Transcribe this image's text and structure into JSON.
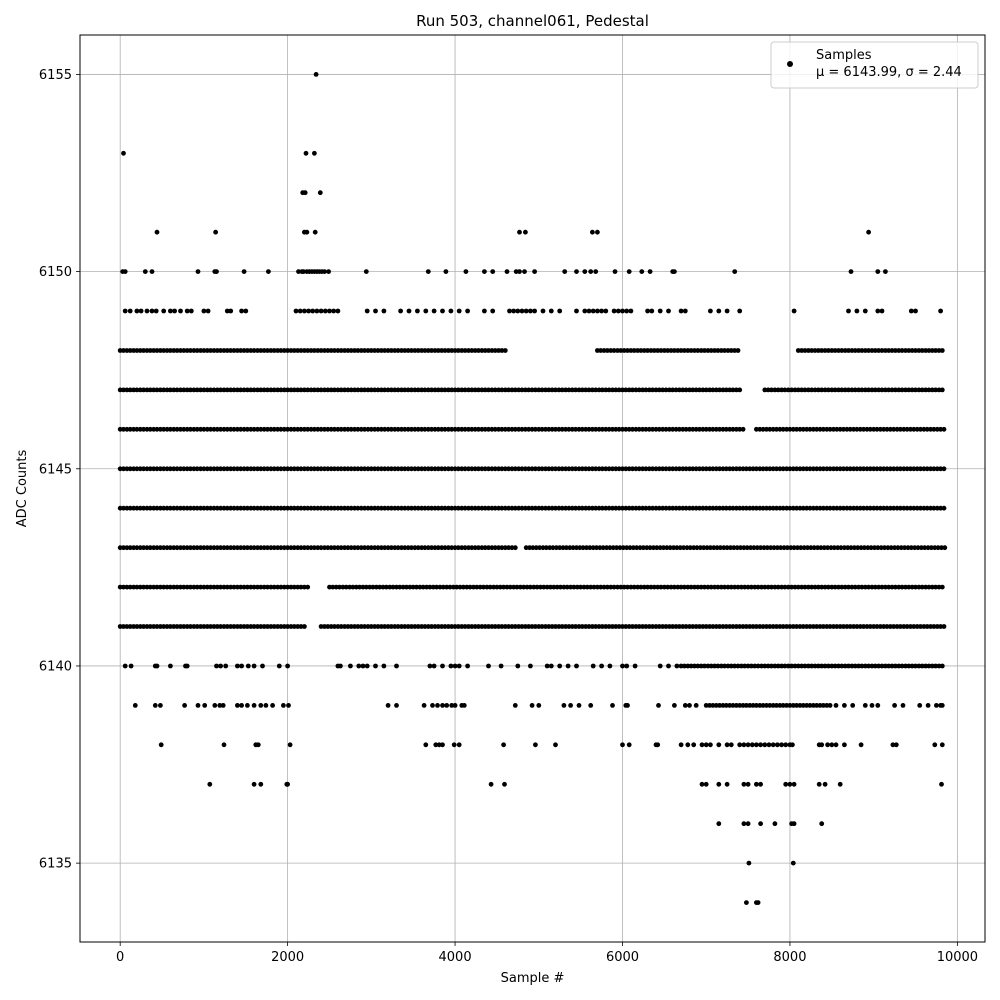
{
  "chart_data": {
    "type": "scatter",
    "title": "Run 503, channel061, Pedestal",
    "xlabel": "Sample #",
    "ylabel": "ADC Counts",
    "xlim": [
      -480,
      10330
    ],
    "ylim": [
      6133,
      6156
    ],
    "xticks": [
      0,
      2000,
      4000,
      6000,
      8000,
      10000
    ],
    "yticks": [
      6135,
      6140,
      6145,
      6150,
      6155
    ],
    "grid": true,
    "marker_color": "#000000",
    "legend": {
      "placement": "top-right",
      "series_name": "Samples",
      "stats_text": "μ = 6143.99, σ = 2.44"
    },
    "sample_count": 9850,
    "level_segments": [
      {
        "y": 6148,
        "segments": [
          [
            0,
            4600
          ],
          [
            5700,
            7400
          ],
          [
            8100,
            9850
          ]
        ]
      },
      {
        "y": 6147,
        "segments": [
          [
            0,
            7400
          ],
          [
            7700,
            9850
          ]
        ]
      },
      {
        "y": 6146,
        "segments": [
          [
            0,
            7450
          ],
          [
            7600,
            9850
          ]
        ]
      },
      {
        "y": 6145,
        "segments": [
          [
            0,
            9850
          ]
        ]
      },
      {
        "y": 6144,
        "segments": [
          [
            0,
            9850
          ]
        ]
      },
      {
        "y": 6143,
        "segments": [
          [
            0,
            4750
          ],
          [
            4850,
            9850
          ]
        ]
      },
      {
        "y": 6142,
        "segments": [
          [
            0,
            2250
          ],
          [
            2500,
            9850
          ]
        ]
      },
      {
        "y": 6141,
        "segments": [
          [
            0,
            2200
          ],
          [
            2400,
            9850
          ]
        ]
      },
      {
        "y": 6140,
        "segments": [
          [
            6700,
            9850
          ]
        ]
      },
      {
        "y": 6139,
        "segments": [
          [
            7000,
            8500
          ]
        ]
      }
    ],
    "sparse_levels": [
      {
        "y": 6149,
        "x": [
          60,
          120,
          200,
          250,
          320,
          380,
          430,
          520,
          600,
          650,
          720,
          800,
          850,
          1000,
          1050,
          1280,
          1320,
          1450,
          1500,
          2100,
          2150,
          2200,
          2250,
          2300,
          2350,
          2400,
          2450,
          2500,
          2550,
          2600,
          2950,
          3050,
          3150,
          3350,
          3450,
          3550,
          3650,
          3750,
          3850,
          3950,
          4050,
          4150,
          4350,
          4450,
          4650,
          4700,
          4750,
          4800,
          4850,
          4900,
          4950,
          5050,
          5150,
          5250,
          5450,
          5550,
          5600,
          5650,
          5700,
          5750,
          5800,
          5900,
          5950,
          6000,
          6050,
          6100,
          6300,
          6350,
          6450,
          6550,
          6700,
          6750,
          7050,
          7150,
          7250,
          7400,
          8050,
          8700,
          8800,
          8900,
          9050,
          9100,
          9450,
          9500,
          9800
        ]
      },
      {
        "y": 6150,
        "x": [
          30,
          60,
          300,
          380,
          930,
          1130,
          1150,
          1480,
          1770,
          2130,
          2170,
          2190,
          2230,
          2260,
          2290,
          2320,
          2350,
          2380,
          2410,
          2440,
          2490,
          2940,
          3680,
          3890,
          4130,
          4350,
          4450,
          4620,
          4730,
          4770,
          4830,
          4950,
          5310,
          5450,
          5550,
          5620,
          5680,
          5910,
          6080,
          6230,
          6330,
          6600,
          6620,
          7340,
          8730,
          9050,
          9140
        ]
      },
      {
        "y": 6151,
        "x": [
          440,
          1140,
          2200,
          2230,
          2330,
          4770,
          4840,
          5640,
          5700,
          8940
        ]
      },
      {
        "y": 6152,
        "x": [
          2180,
          2210,
          2390
        ]
      },
      {
        "y": 6153,
        "x": [
          40,
          2220,
          2320
        ]
      },
      {
        "y": 6155,
        "x": [
          2340
        ]
      },
      {
        "y": 6140,
        "x": [
          60,
          130,
          420,
          440,
          600,
          780,
          800,
          1150,
          1200,
          1260,
          1400,
          1450,
          1530,
          1600,
          1700,
          1900,
          2000,
          2600,
          2630,
          2750,
          2850,
          2900,
          2950,
          3050,
          3150,
          3300,
          3700,
          3750,
          3850,
          3950,
          4000,
          4050,
          4150,
          4400,
          4550,
          4750,
          4900,
          5100,
          5150,
          5250,
          5350,
          5450,
          5650,
          5750,
          5850,
          6000,
          6050,
          6150,
          6450,
          6550,
          6650
        ]
      },
      {
        "y": 6139,
        "x": [
          180,
          420,
          480,
          770,
          930,
          1010,
          1130,
          1190,
          1230,
          1400,
          1450,
          1520,
          1600,
          1680,
          1740,
          1820,
          1950,
          2010,
          3200,
          3300,
          3630,
          3730,
          3790,
          3850,
          3900,
          3960,
          4000,
          4080,
          4110,
          4720,
          4920,
          5000,
          5300,
          5380,
          5480,
          5620,
          5880,
          6040,
          6060,
          6430,
          6620,
          6750,
          6800,
          6880,
          8550,
          8650,
          8750,
          8900,
          8980,
          9050,
          9250,
          9350,
          9550,
          9650,
          9750,
          9800,
          9820
        ]
      },
      {
        "y": 6138,
        "x": [
          490,
          1240,
          1620,
          1650,
          2030,
          3650,
          3770,
          3810,
          3850,
          3990,
          4050,
          4580,
          4960,
          5200,
          6000,
          6080,
          6400,
          6420,
          6700,
          6780,
          6850,
          6950,
          7000,
          7050,
          7150,
          7250,
          7300,
          7400,
          7450,
          7500,
          7550,
          7600,
          7650,
          7700,
          7750,
          7800,
          7850,
          7900,
          7950,
          8000,
          8030,
          8350,
          8380,
          8450,
          8500,
          8550,
          8650,
          8850,
          9230,
          9270,
          9730,
          9820
        ]
      },
      {
        "y": 6137,
        "x": [
          1070,
          1600,
          1680,
          1990,
          2000,
          4430,
          4590,
          6950,
          7000,
          7150,
          7250,
          7450,
          7500,
          7600,
          7650,
          7950,
          8000,
          8050,
          8350,
          8420,
          8600,
          9810
        ]
      },
      {
        "y": 6136,
        "x": [
          7150,
          7450,
          7500,
          7650,
          7820,
          8020,
          8050,
          8380
        ]
      },
      {
        "y": 6135,
        "x": [
          7510,
          8040
        ]
      },
      {
        "y": 6134,
        "x": [
          7480,
          7600,
          7620
        ]
      }
    ]
  }
}
